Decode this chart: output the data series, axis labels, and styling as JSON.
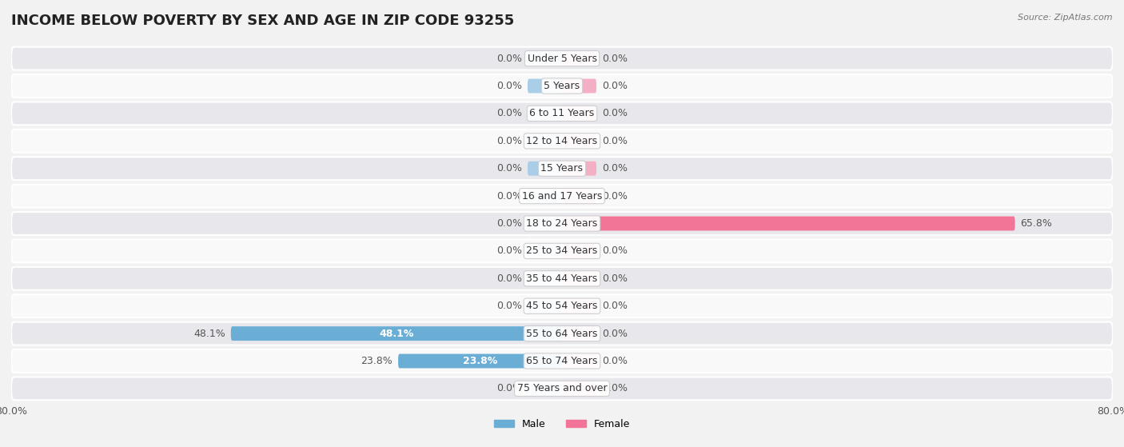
{
  "title": "INCOME BELOW POVERTY BY SEX AND AGE IN ZIP CODE 93255",
  "source": "Source: ZipAtlas.com",
  "categories": [
    "Under 5 Years",
    "5 Years",
    "6 to 11 Years",
    "12 to 14 Years",
    "15 Years",
    "16 and 17 Years",
    "18 to 24 Years",
    "25 to 34 Years",
    "35 to 44 Years",
    "45 to 54 Years",
    "55 to 64 Years",
    "65 to 74 Years",
    "75 Years and over"
  ],
  "male_values": [
    0.0,
    0.0,
    0.0,
    0.0,
    0.0,
    0.0,
    0.0,
    0.0,
    0.0,
    0.0,
    48.1,
    23.8,
    0.0
  ],
  "female_values": [
    0.0,
    0.0,
    0.0,
    0.0,
    0.0,
    0.0,
    65.8,
    0.0,
    0.0,
    0.0,
    0.0,
    0.0,
    0.0
  ],
  "male_color": "#6aaed6",
  "female_color": "#f27496",
  "male_label": "Male",
  "female_label": "Female",
  "xlim": 80.0,
  "background_color": "#f2f2f2",
  "row_bg_light": "#f9f9f9",
  "row_bg_dark": "#e8e8ec",
  "title_fontsize": 13,
  "label_fontsize": 9,
  "tick_fontsize": 9,
  "bar_height": 0.52,
  "default_bar_color_male": "#aacde8",
  "default_bar_color_female": "#f4afc5"
}
